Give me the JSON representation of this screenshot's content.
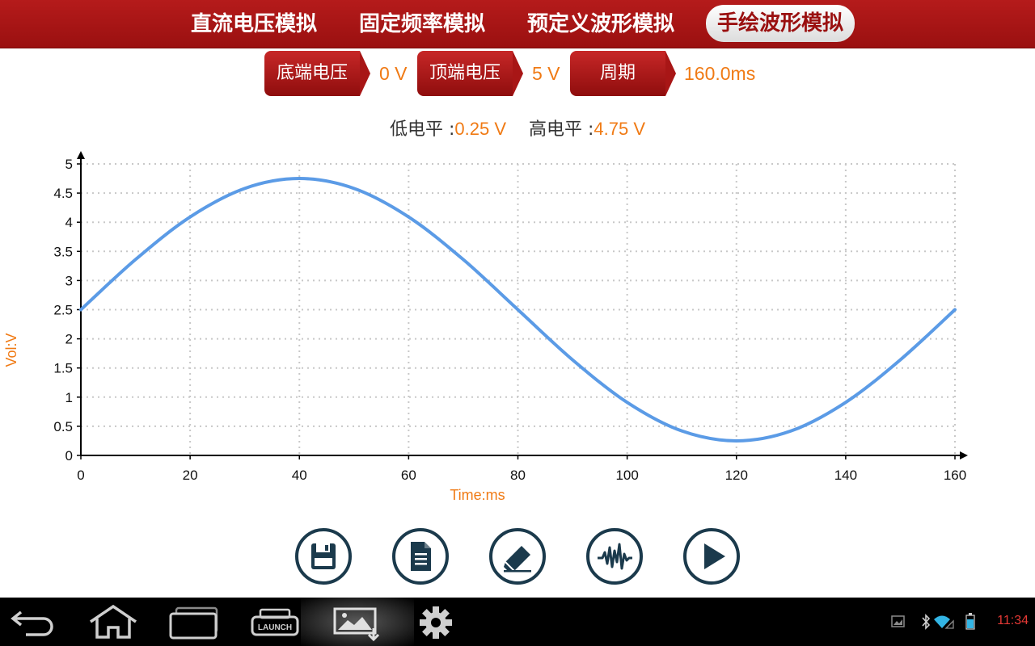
{
  "tabs": [
    {
      "label": "直流电压模拟",
      "active": false
    },
    {
      "label": "固定频率模拟",
      "active": false
    },
    {
      "label": "预定义波形模拟",
      "active": false
    },
    {
      "label": "手绘波形模拟",
      "active": true
    }
  ],
  "params": {
    "bottom_voltage_label": "底端电压",
    "bottom_voltage_value": "0 V",
    "top_voltage_label": "顶端电压",
    "top_voltage_value": "5 V",
    "period_label": "周期",
    "period_value": "160.0ms"
  },
  "levels": {
    "low_label": "低电平 :",
    "low_value": "0.25 V",
    "high_label": "高电平 :",
    "high_value": "4.75 V"
  },
  "chart_data": {
    "type": "line",
    "xlabel": "Time:ms",
    "ylabel": "Vol:V",
    "xlim": [
      0,
      160
    ],
    "ylim": [
      0,
      5
    ],
    "x_ticks": [
      "0",
      "20",
      "40",
      "60",
      "80",
      "100",
      "120",
      "140",
      "160"
    ],
    "y_ticks": [
      "0",
      "0.5",
      "1",
      "1.5",
      "2",
      "2.5",
      "3",
      "3.5",
      "4",
      "4.5",
      "5"
    ],
    "grid": true,
    "series": [
      {
        "color": "#5b9be6",
        "x": [
          0,
          10,
          20,
          30,
          40,
          50,
          60,
          70,
          80,
          90,
          100,
          110,
          120,
          130,
          140,
          150,
          160
        ],
        "y": [
          2.5,
          3.36,
          4.09,
          4.58,
          4.75,
          4.58,
          4.09,
          3.36,
          2.5,
          1.64,
          0.91,
          0.42,
          0.25,
          0.42,
          0.91,
          1.64,
          2.5
        ]
      }
    ]
  },
  "actions": [
    {
      "name": "save-button",
      "icon": "floppy-disk-icon"
    },
    {
      "name": "document-button",
      "icon": "document-icon"
    },
    {
      "name": "eraser-button",
      "icon": "eraser-icon"
    },
    {
      "name": "waveform-button",
      "icon": "waveform-icon"
    },
    {
      "name": "play-button",
      "icon": "play-icon"
    }
  ],
  "colors": {
    "accent_red": "#b51b1b",
    "value_orange": "#f07a14",
    "curve_blue": "#5b9be6",
    "icon_navy": "#1b3a4c"
  },
  "system_bar": {
    "clock": "11:34",
    "launch_label": "LAUNCH"
  }
}
